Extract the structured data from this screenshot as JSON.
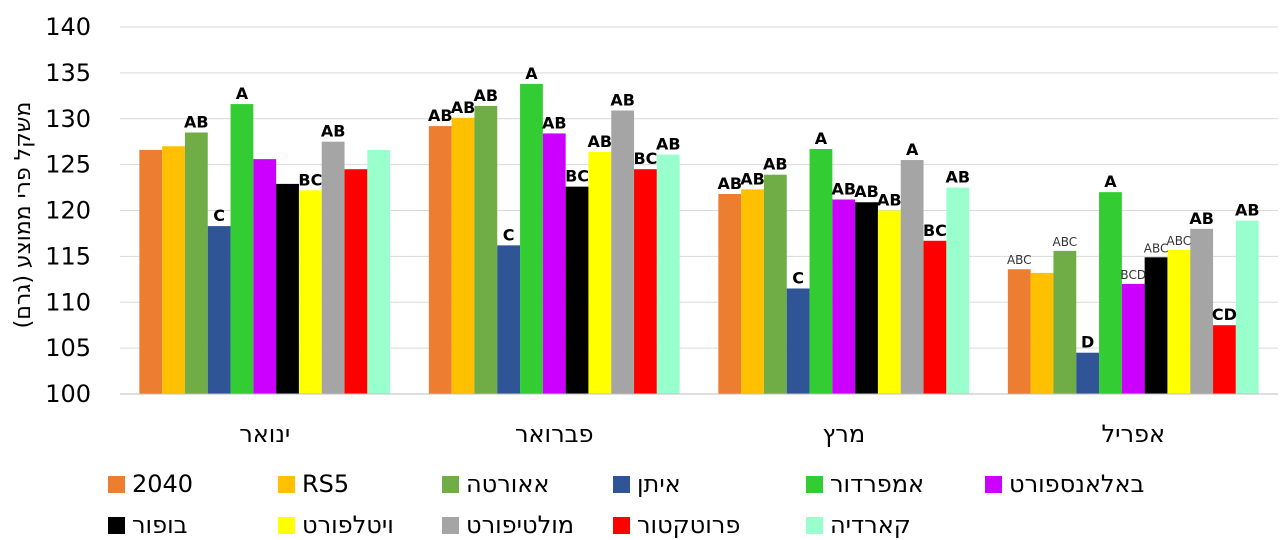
{
  "chart_data": {
    "type": "bar",
    "title": "",
    "xlabel": "",
    "ylabel": "משקל פרי ממוצע (גרם)",
    "ylim": [
      100,
      140
    ],
    "yticks": [
      100,
      105,
      110,
      115,
      120,
      125,
      130,
      135,
      140
    ],
    "grid": true,
    "legend_position": "bottom",
    "categories": [
      "ינואר",
      "פברואר",
      "מרץ",
      "אפריל"
    ],
    "series": [
      {
        "name": "2040",
        "color": "#ED7D31",
        "values": [
          126.6,
          129.2,
          121.8,
          113.6
        ],
        "labels": [
          "",
          "AB",
          "AB",
          "ABC"
        ]
      },
      {
        "name": "RS5",
        "color": "#FFC000",
        "values": [
          127.0,
          130.1,
          122.3,
          113.2
        ],
        "labels": [
          "",
          "AB",
          "AB",
          ""
        ]
      },
      {
        "name": "אאורטה",
        "color": "#70AD47",
        "values": [
          128.5,
          131.4,
          123.9,
          115.6
        ],
        "labels": [
          "AB",
          "AB",
          "AB",
          "ABC"
        ]
      },
      {
        "name": "איתן",
        "color": "#2F5597",
        "values": [
          118.3,
          116.2,
          111.5,
          104.5
        ],
        "labels": [
          "C",
          "C",
          "C",
          "D"
        ]
      },
      {
        "name": "אמפרדור",
        "color": "#33CC33",
        "values": [
          131.6,
          133.8,
          126.7,
          122.0
        ],
        "labels": [
          "A",
          "A",
          "A",
          "A"
        ]
      },
      {
        "name": "באלאנספורט",
        "color": "#CC00FF",
        "values": [
          125.6,
          128.4,
          121.2,
          112.0
        ],
        "labels": [
          "",
          "AB",
          "AB",
          "BCD"
        ]
      },
      {
        "name": "בופור",
        "color": "#000000",
        "values": [
          122.9,
          122.6,
          120.9,
          114.9
        ],
        "labels": [
          "",
          "BC",
          "AB",
          "ABC"
        ]
      },
      {
        "name": "ויטלפורט",
        "color": "#FFFF00",
        "values": [
          122.2,
          126.4,
          120.0,
          115.7
        ],
        "labels": [
          "BC",
          "AB",
          "AB",
          "ABC"
        ]
      },
      {
        "name": "מולטיפורט",
        "color": "#A5A5A5",
        "values": [
          127.5,
          130.9,
          125.5,
          118.0
        ],
        "labels": [
          "AB",
          "AB",
          "A",
          "AB"
        ]
      },
      {
        "name": "פרוטקטור",
        "color": "#FF0000",
        "values": [
          124.5,
          124.5,
          116.7,
          107.5
        ],
        "labels": [
          "",
          "BC",
          "BC",
          "CD"
        ]
      },
      {
        "name": "קארדיה",
        "color": "#99FFCC",
        "values": [
          126.6,
          126.1,
          122.5,
          118.9
        ],
        "labels": [
          "",
          "AB",
          "AB",
          "AB"
        ]
      }
    ]
  }
}
